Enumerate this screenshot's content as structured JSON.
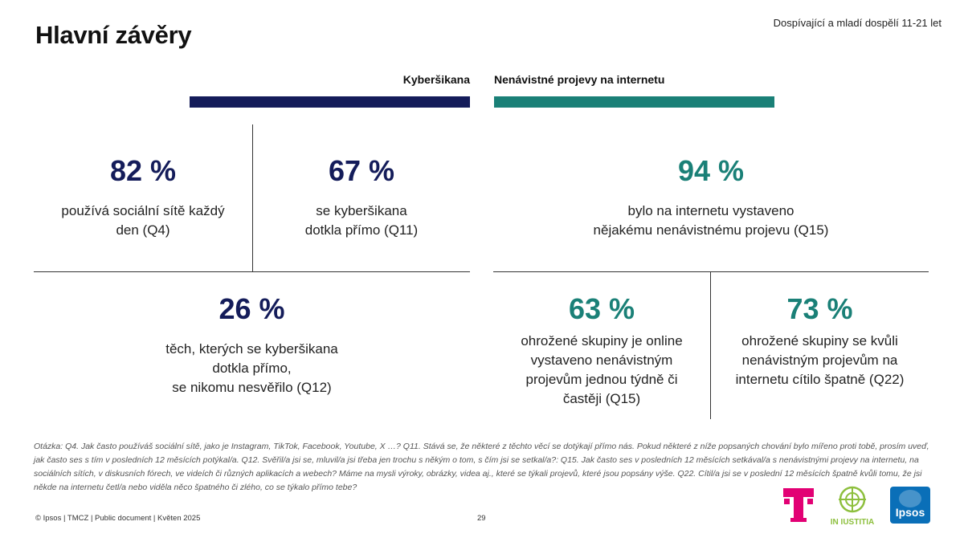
{
  "header": {
    "title": "Hlavní závěry",
    "audience": "Dospívající a mladí dospělí 11-21 let"
  },
  "sections": {
    "cyber_label": "Kyberšikana",
    "hate_label": "Nenávistné projevy na internetu"
  },
  "colors": {
    "navy": "#141c5a",
    "teal": "#1a8077"
  },
  "stats": {
    "social_daily": {
      "value": "82 %",
      "line1": "používá sociální sítě každý",
      "line2": "den (Q4)"
    },
    "cyber_direct": {
      "value": "67 %",
      "line1": "se kyberšikana",
      "line2": "dotkla přímo (Q11)"
    },
    "cyber_untold": {
      "value": "26 %",
      "line1": "těch, kterých se kyberšikana",
      "line2": "dotkla přímo,",
      "line3": "se nikomu nesvěřilo (Q12)"
    },
    "hate_exposed": {
      "value": "94 %",
      "line1": "bylo na internetu vystaveno",
      "line2": "nějakému nenávistnému projevu (Q15)"
    },
    "hate_weekly": {
      "value": "63 %",
      "line1": "ohrožené skupiny je online",
      "line2": "vystaveno nenávistným",
      "line3": "projevům jednou týdně či",
      "line4": "častěji (Q15)"
    },
    "hate_felt_bad": {
      "value": "73 %",
      "line1": "ohrožené skupiny se kvůli",
      "line2": "nenávistným projevům na",
      "line3": "internetu cítilo špatně (Q22)"
    }
  },
  "footnote": "Otázka: Q4. Jak často používáš sociální sítě, jako je Instagram, TikTok, Facebook, Youtube, X …? Q11. Stává se, že některé z těchto věcí se dotýkají přímo nás. Pokud některé z níže popsaných chování bylo mířeno proti tobě, prosím uveď, jak často ses s tím v posledních 12 měsících potýkal/a. Q12. Svěřil/a jsi se, mluvil/a jsi třeba jen trochu s někým o tom, s čím jsi se setkal/a?: Q15. Jak často ses v posledních 12 měsících setkával/a s nenávistnými projevy na internetu, na sociálních sítích, v diskusních fórech, ve videích či různých aplikacích a webech? Máme na mysli výroky, obrázky, videa aj., které se týkali projevů, které jsou popsány výše. Q22. Cítil/a jsi se v poslední 12 měsících špatně kvůli tomu, že jsi někde na internetu četl/a nebo viděla něco špatného či zlého, co se týkalo přímo tebe?",
  "footer": {
    "left": "© Ipsos | TMCZ | Public document | Květen 2025",
    "page_number": "29"
  },
  "logos": {
    "t_mobile": {
      "icon": "t-mobile-logo",
      "color": "#e20074"
    },
    "in_iustitia": {
      "icon": "in-iustitia-logo",
      "text": "IN IUSTITIA",
      "color": "#8dbf3d"
    },
    "ipsos": {
      "icon": "ipsos-logo",
      "text": "Ipsos",
      "color": "#0a6fb8"
    }
  }
}
